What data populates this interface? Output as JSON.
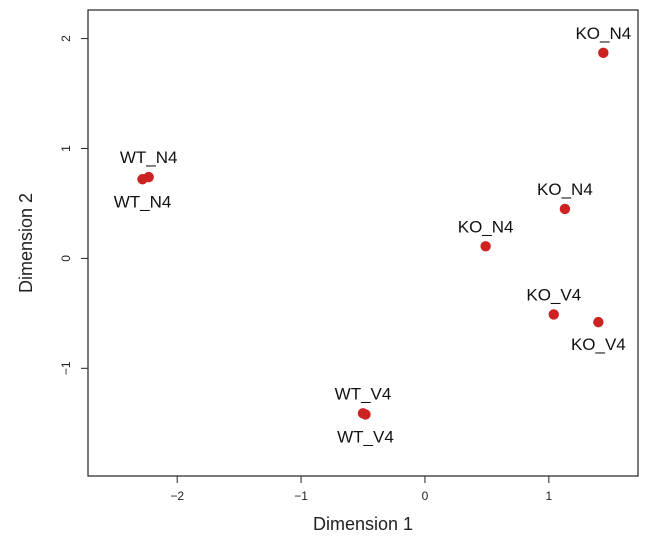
{
  "chart_data": {
    "type": "scatter",
    "title": "",
    "xlabel": "Dimension 1",
    "ylabel": "Dimension 2",
    "xlim": [
      -2.72,
      1.72
    ],
    "ylim": [
      -1.98,
      2.26
    ],
    "x_ticks": [
      -2,
      -1,
      0,
      1
    ],
    "y_ticks": [
      -1,
      0,
      1,
      2
    ],
    "grid": false,
    "point_color": "#cc2222",
    "points": [
      {
        "label": "KO_N4",
        "x": 1.44,
        "y": 1.87,
        "label_pos": "above"
      },
      {
        "label": "WT_N4",
        "x": -2.23,
        "y": 0.74,
        "label_pos": "above"
      },
      {
        "label": "WT_N4",
        "x": -2.28,
        "y": 0.72,
        "label_pos": "below"
      },
      {
        "label": "KO_N4",
        "x": 1.13,
        "y": 0.45,
        "label_pos": "above"
      },
      {
        "label": "KO_N4",
        "x": 0.49,
        "y": 0.11,
        "label_pos": "above"
      },
      {
        "label": "KO_V4",
        "x": 1.04,
        "y": -0.51,
        "label_pos": "above"
      },
      {
        "label": "KO_V4",
        "x": 1.4,
        "y": -0.58,
        "label_pos": "below"
      },
      {
        "label": "WT_V4",
        "x": -0.5,
        "y": -1.41,
        "label_pos": "above"
      },
      {
        "label": "WT_V4",
        "x": -0.48,
        "y": -1.42,
        "label_pos": "below"
      }
    ]
  }
}
